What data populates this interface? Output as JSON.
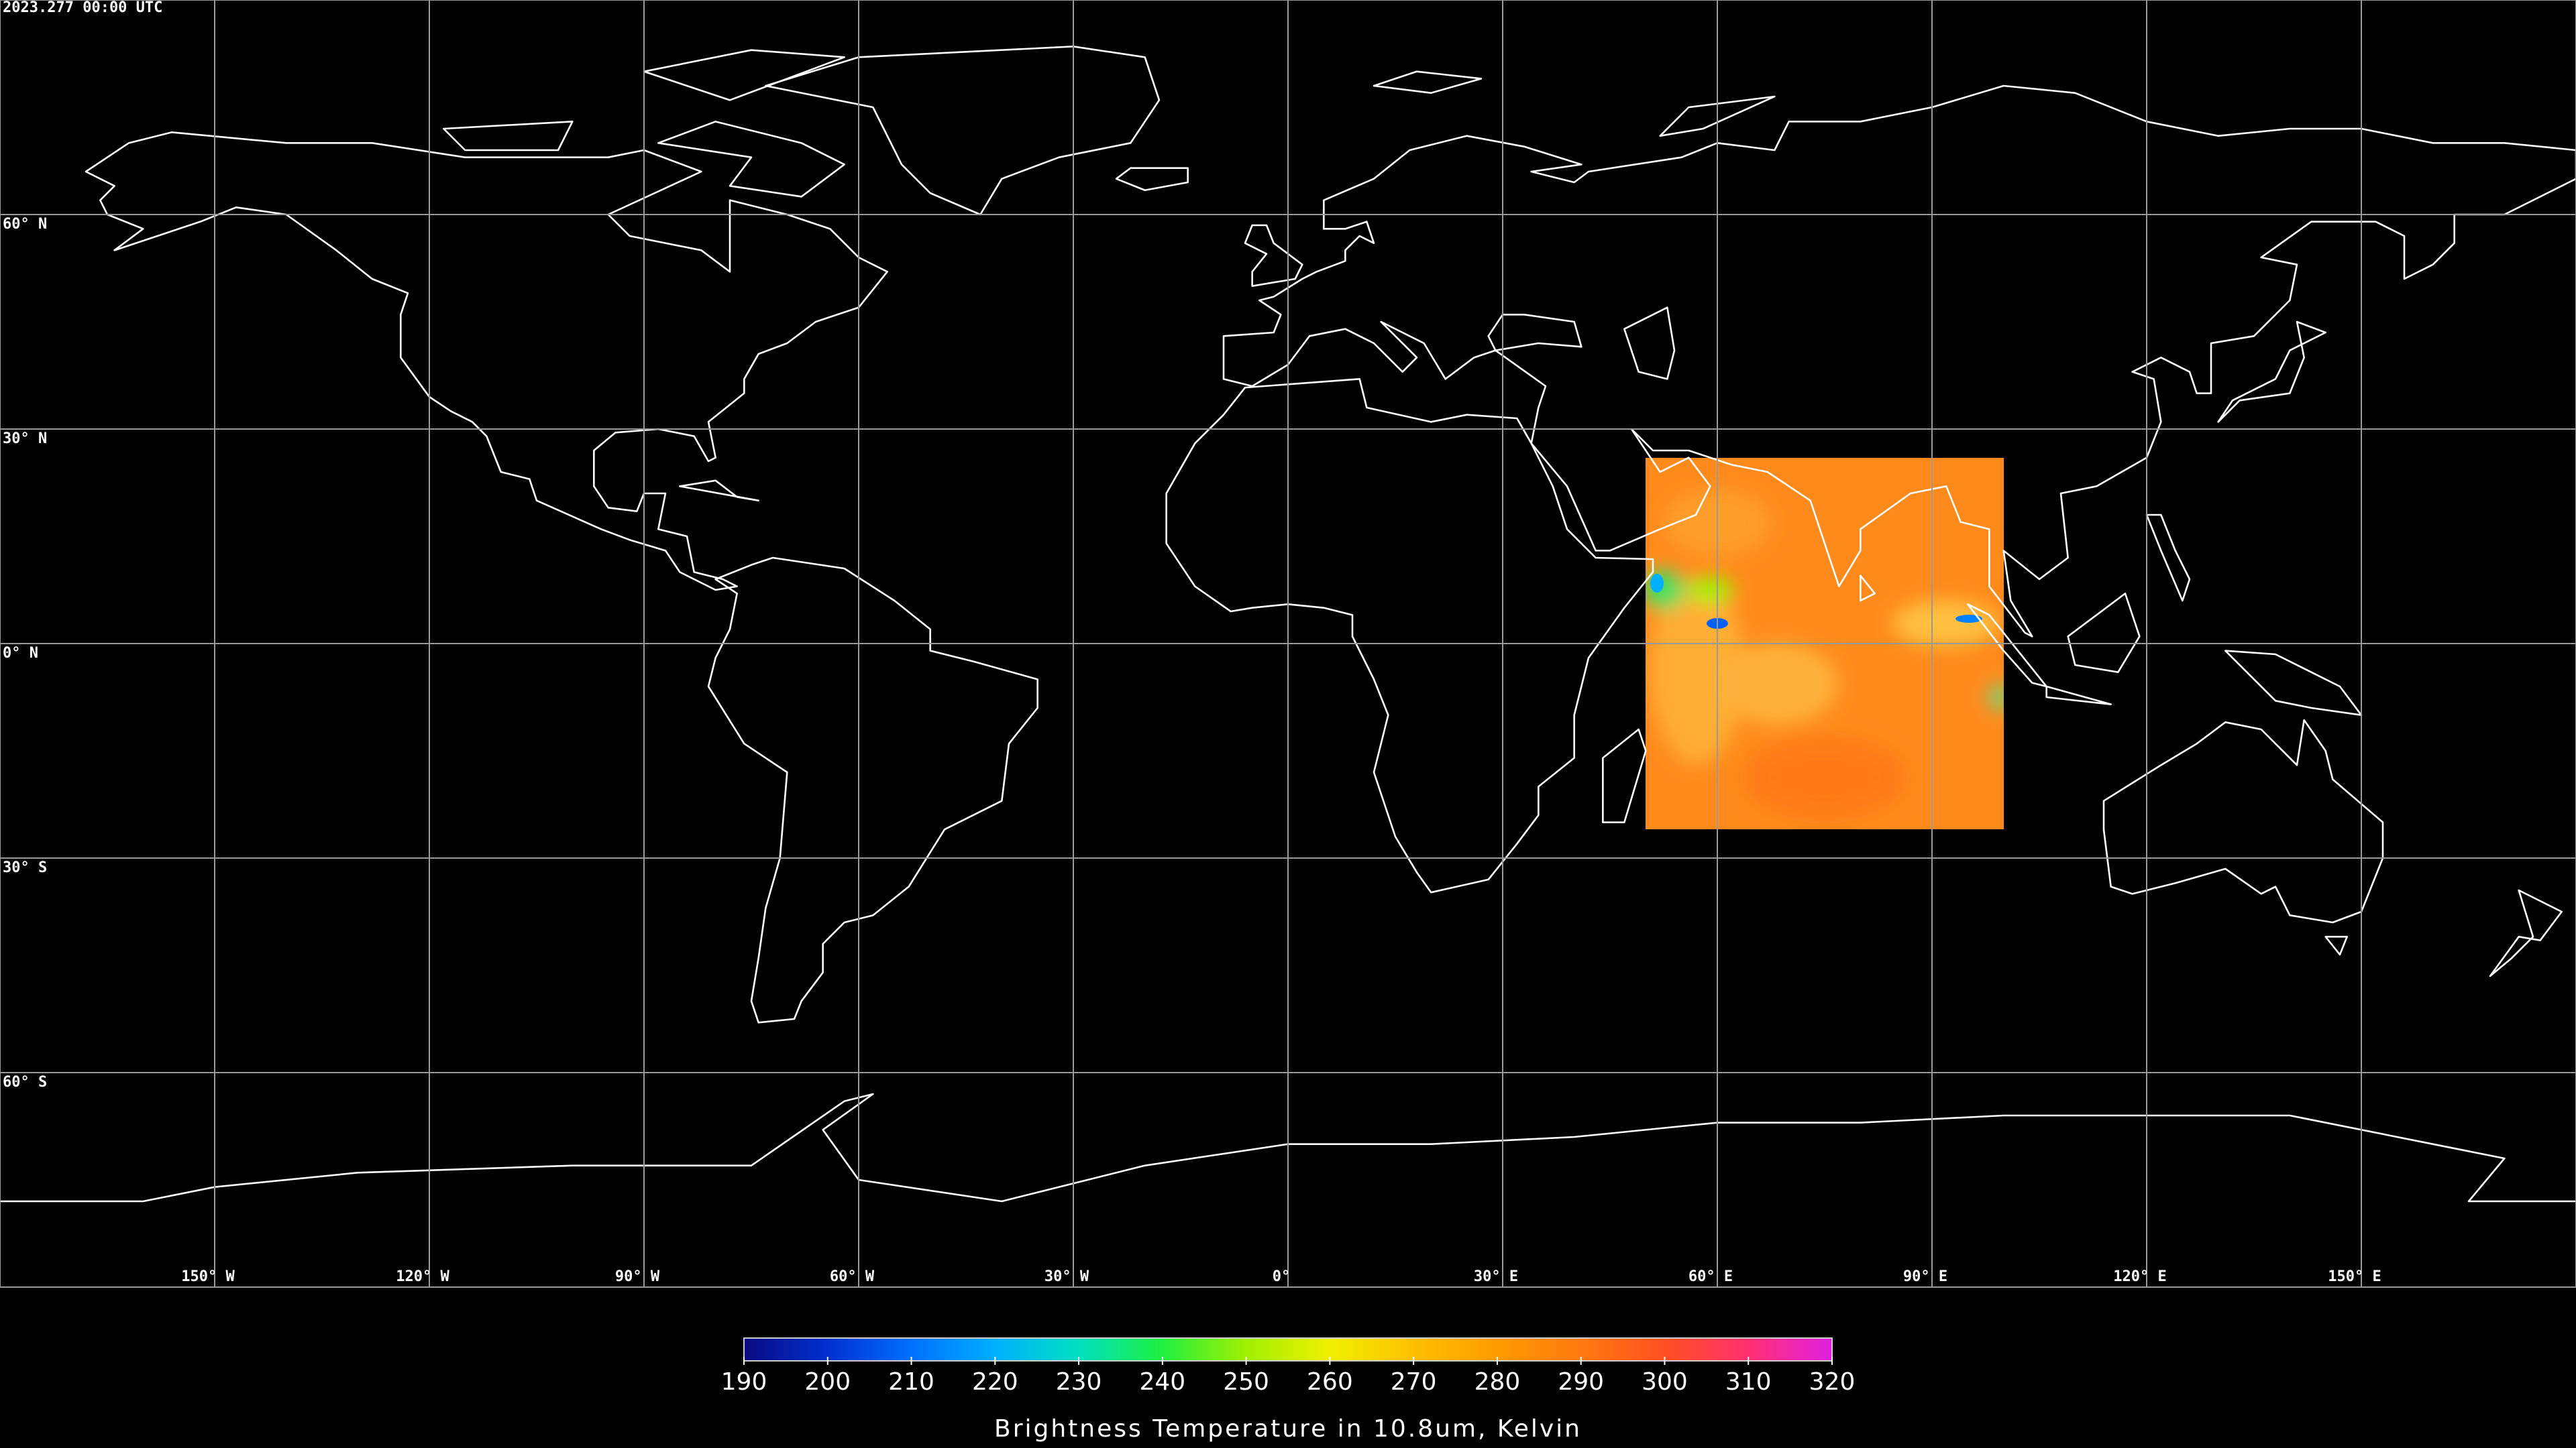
{
  "timestamp": "2023.277 00:00 UTC",
  "map": {
    "xlim": [
      -180,
      180
    ],
    "ylim": [
      -90,
      90
    ],
    "lat_ticks": [
      {
        "value": 60,
        "label": "60° N"
      },
      {
        "value": 30,
        "label": "30° N"
      },
      {
        "value": 0,
        "label": "0° N"
      },
      {
        "value": -30,
        "label": "30° S"
      },
      {
        "value": -60,
        "label": "60° S"
      }
    ],
    "lon_ticks": [
      {
        "value": -150,
        "label": "150° W"
      },
      {
        "value": -120,
        "label": "120° W"
      },
      {
        "value": -90,
        "label": "90° W"
      },
      {
        "value": -60,
        "label": "60° W"
      },
      {
        "value": -30,
        "label": "30° W"
      },
      {
        "value": 0,
        "label": "0°"
      },
      {
        "value": 30,
        "label": "30° E"
      },
      {
        "value": 60,
        "label": "60° E"
      },
      {
        "value": 90,
        "label": "90° E"
      },
      {
        "value": 120,
        "label": "120° E"
      },
      {
        "value": 150,
        "label": "150° E"
      }
    ]
  },
  "colorbar": {
    "lim": [
      190,
      320
    ],
    "ticks": [
      190,
      200,
      210,
      220,
      230,
      240,
      250,
      260,
      270,
      280,
      290,
      300,
      310,
      320
    ],
    "label": "Brightness Temperature in 10.8um, Kelvin",
    "colormap": [
      "#0a0a80",
      "#0030d0",
      "#0070ff",
      "#00b0ff",
      "#00e0c0",
      "#20f040",
      "#a0f000",
      "#f0f000",
      "#ffc000",
      "#ff9a00",
      "#ff7a10",
      "#ff5020",
      "#ff3070",
      "#e020e0"
    ]
  }
}
